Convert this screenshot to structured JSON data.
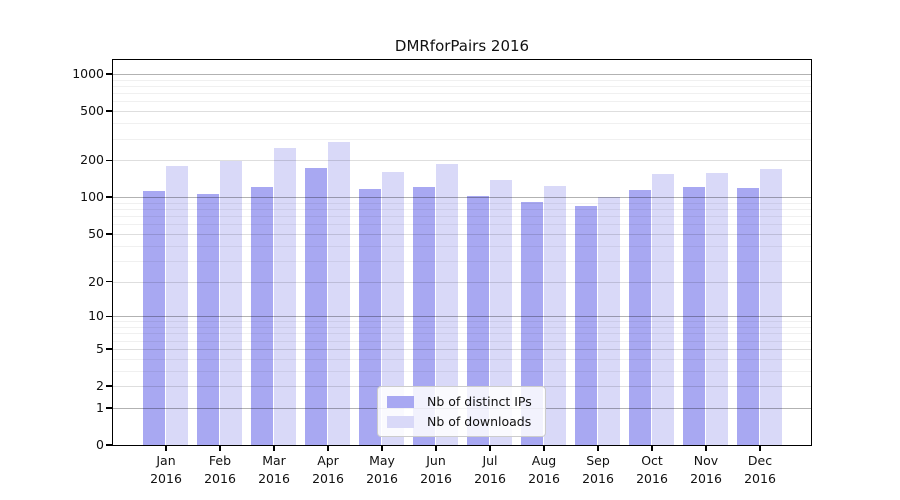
{
  "title": "DMRforPairs 2016",
  "colors": {
    "distinct_ips": "#a8a8f2",
    "downloads": "#d9d9f8",
    "axis": "#000000",
    "grid_major_power": "rgba(0,0,0,0.30)",
    "grid_major": "rgba(0,0,0,0.13)",
    "grid_minor": "rgba(0,0,0,0.06)",
    "legend_border": "#cccccc"
  },
  "chart_data": {
    "type": "bar",
    "title": "DMRforPairs 2016",
    "xlabel": "",
    "ylabel": "",
    "yscale": "log1p",
    "ylim": [
      0,
      1300
    ],
    "grid": true,
    "legend_position": "lower center",
    "categories": [
      "Jan",
      "Feb",
      "Mar",
      "Apr",
      "May",
      "Jun",
      "Jul",
      "Aug",
      "Sep",
      "Oct",
      "Nov",
      "Dec"
    ],
    "category_year": "2016",
    "major_ticks": [
      0,
      1,
      2,
      5,
      10,
      20,
      50,
      100,
      200,
      500,
      1000
    ],
    "minor_ticks": [
      3,
      4,
      6,
      7,
      8,
      9,
      30,
      40,
      60,
      70,
      80,
      90,
      300,
      400,
      600,
      700,
      800,
      900
    ],
    "series": [
      {
        "name": "Nb of distinct IPs",
        "color": "#a8a8f2",
        "values": [
          112,
          107,
          121,
          173,
          117,
          121,
          102,
          91,
          85,
          115,
          121,
          119
        ]
      },
      {
        "name": "Nb of downloads",
        "color": "#d9d9f8",
        "values": [
          180,
          197,
          250,
          281,
          162,
          187,
          138,
          124,
          100,
          155,
          158,
          170
        ]
      }
    ]
  }
}
